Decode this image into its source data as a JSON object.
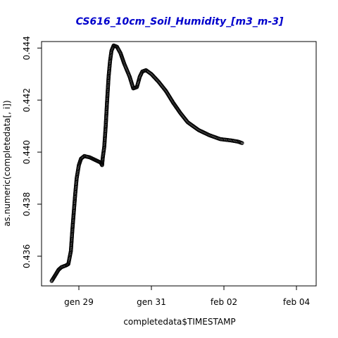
{
  "chart_data": {
    "type": "scatter",
    "title": "CS616_10cm_Soil_Humidity_[m3_m-3]",
    "xlabel": "completedata$TIMESTAMP",
    "ylabel": "as.numeric(completedata[, i])",
    "x_unit": "days",
    "xlim": [
      -0.75,
      4.5
    ],
    "ylim": [
      0.43486,
      0.44425
    ],
    "x_ticks": [
      {
        "value": 0,
        "label": "gen 29"
      },
      {
        "value": 2,
        "label": "gen 31"
      },
      {
        "value": 4,
        "label": "feb 02"
      },
      {
        "value": 6,
        "label": "feb 04"
      }
    ],
    "y_ticks": [
      {
        "value": 0.436,
        "label": "0.436"
      },
      {
        "value": 0.438,
        "label": "0.438"
      },
      {
        "value": 0.44,
        "label": "0.440"
      },
      {
        "value": 0.442,
        "label": "0.442"
      },
      {
        "value": 0.444,
        "label": "0.444"
      }
    ],
    "marker": "open-circle",
    "marker_color": "#000000",
    "grid": false,
    "legend": "none",
    "series": [
      {
        "points": [
          [
            -0.75,
            0.43505
          ],
          [
            -0.66,
            0.43525
          ],
          [
            -0.56,
            0.43548
          ],
          [
            -0.48,
            0.43558
          ],
          [
            -0.35,
            0.43565
          ],
          [
            -0.29,
            0.4357
          ],
          [
            -0.22,
            0.4362
          ],
          [
            -0.18,
            0.437
          ],
          [
            -0.14,
            0.4377
          ],
          [
            -0.1,
            0.4384
          ],
          [
            -0.06,
            0.439
          ],
          [
            0.0,
            0.4395
          ],
          [
            0.06,
            0.43975
          ],
          [
            0.15,
            0.43985
          ],
          [
            0.3,
            0.4398
          ],
          [
            0.45,
            0.4397
          ],
          [
            0.6,
            0.4396
          ],
          [
            0.64,
            0.4395
          ],
          [
            0.66,
            0.4398
          ],
          [
            0.7,
            0.4402
          ],
          [
            0.74,
            0.441
          ],
          [
            0.78,
            0.442
          ],
          [
            0.82,
            0.4429
          ],
          [
            0.86,
            0.4435
          ],
          [
            0.9,
            0.4439
          ],
          [
            0.96,
            0.4441
          ],
          [
            1.05,
            0.44405
          ],
          [
            1.15,
            0.4438
          ],
          [
            1.25,
            0.4434
          ],
          [
            1.4,
            0.4429
          ],
          [
            1.5,
            0.44245
          ],
          [
            1.6,
            0.4425
          ],
          [
            1.68,
            0.4429
          ],
          [
            1.75,
            0.4431
          ],
          [
            1.85,
            0.44315
          ],
          [
            2.0,
            0.443
          ],
          [
            2.2,
            0.4427
          ],
          [
            2.4,
            0.44235
          ],
          [
            2.6,
            0.4419
          ],
          [
            2.8,
            0.4415
          ],
          [
            3.0,
            0.44115
          ],
          [
            3.3,
            0.44085
          ],
          [
            3.6,
            0.44065
          ],
          [
            3.9,
            0.4405
          ],
          [
            4.2,
            0.44045
          ],
          [
            4.4,
            0.4404
          ],
          [
            4.5,
            0.44035
          ]
        ]
      }
    ]
  }
}
